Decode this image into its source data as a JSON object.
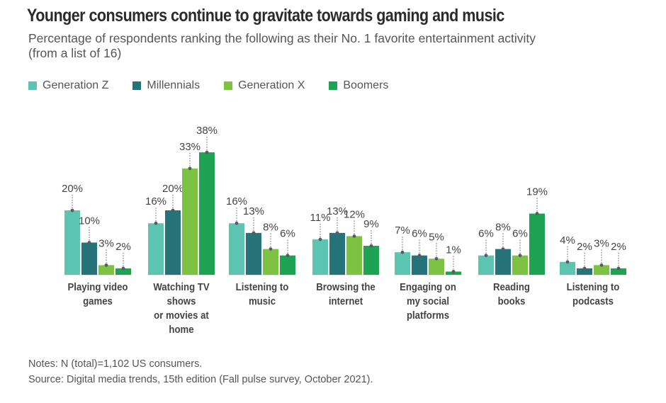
{
  "header": {
    "title": "Younger consumers continue to gravitate towards gaming and music",
    "subtitle_line1": "Percentage of respondents ranking the following as their No. 1 favorite entertainment activity",
    "subtitle_line2": "(from a list of 16)"
  },
  "legend": [
    {
      "label": "Generation Z",
      "color": "#5ec4b2"
    },
    {
      "label": "Millennials",
      "color": "#26737a"
    },
    {
      "label": "Generation X",
      "color": "#7dc242"
    },
    {
      "label": "Boomers",
      "color": "#1da351"
    }
  ],
  "chart_data": {
    "type": "bar",
    "title": "Younger consumers continue to gravitate towards gaming and music",
    "subtitle": "Percentage of respondents ranking the following as their No. 1 favorite entertainment activity (from a list of 16)",
    "xlabel": "",
    "ylabel": "",
    "ylim": [
      0,
      40
    ],
    "grid": false,
    "legend_position": "top-left",
    "categories": [
      [
        "Playing video",
        "games"
      ],
      [
        "Watching TV",
        "shows",
        "or movies at",
        "home"
      ],
      [
        "Listening to",
        "music"
      ],
      [
        "Browsing the",
        "internet"
      ],
      [
        "Engaging on",
        "my social",
        "platforms"
      ],
      [
        "Reading",
        "books"
      ],
      [
        "Listening to",
        "podcasts"
      ]
    ],
    "series": [
      {
        "name": "Generation Z",
        "color": "#5ec4b2",
        "values": [
          20,
          16,
          16,
          11,
          7,
          6,
          4
        ]
      },
      {
        "name": "Millennials",
        "color": "#26737a",
        "values": [
          10,
          20,
          13,
          13,
          6,
          8,
          2
        ]
      },
      {
        "name": "Generation X",
        "color": "#7dc242",
        "values": [
          3,
          33,
          8,
          12,
          5,
          6,
          3
        ]
      },
      {
        "name": "Boomers",
        "color": "#1da351",
        "values": [
          2,
          38,
          6,
          9,
          1,
          19,
          2
        ]
      }
    ],
    "data_labels_suffix": "%"
  },
  "footer": {
    "notes": "Notes: N (total)=1,102 US consumers.",
    "source": "Source: Digital media trends, 15th edition (Fall pulse survey, October 2021)."
  }
}
